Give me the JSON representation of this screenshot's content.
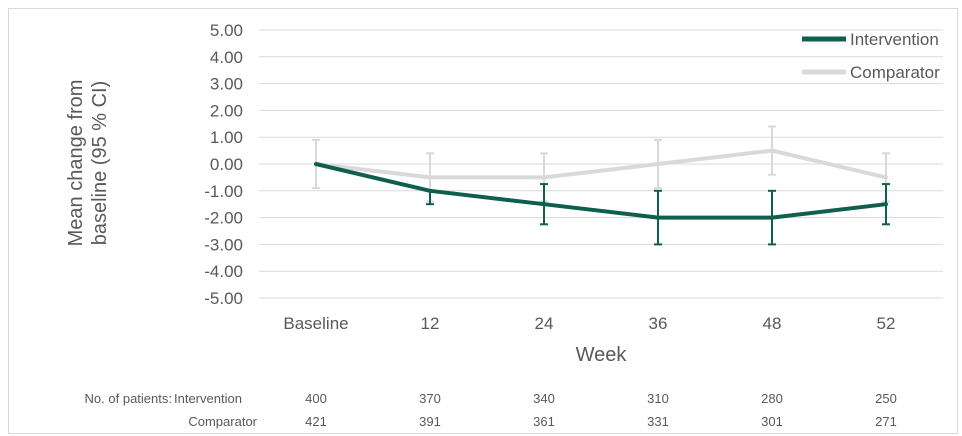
{
  "chart_data": {
    "type": "line",
    "title": "",
    "xlabel": "Week",
    "ylabel": "Mean change from baseline (95 % CI)",
    "ylabel_lines": [
      "Mean change from",
      "baseline (95 % CI)"
    ],
    "categories": [
      "Baseline",
      "12",
      "24",
      "36",
      "48",
      "52"
    ],
    "ylim": [
      -5,
      5
    ],
    "y_ticks": [
      "5.00",
      "4.00",
      "3.00",
      "2.00",
      "1.00",
      "0.00",
      "-1.00",
      "-2.00",
      "-3.00",
      "-4.00",
      "-5.00"
    ],
    "grid": "horizontal",
    "legend_position": "top-right",
    "series": [
      {
        "name": "Comparator",
        "color": "#d9d9d9",
        "values": [
          0,
          -0.5,
          -0.5,
          0,
          0.5,
          -0.5
        ],
        "ci_lower": [
          -0.9,
          -1.4,
          -1.4,
          -0.9,
          -0.4,
          -1.4
        ],
        "ci_upper": [
          0.9,
          0.4,
          0.4,
          0.9,
          1.4,
          0.4
        ]
      },
      {
        "name": "Intervention",
        "color": "#0e5f4c",
        "values": [
          0,
          -1,
          -1.5,
          -2,
          -2,
          -1.5
        ],
        "ci_lower": [
          0,
          -1.5,
          -2.25,
          -3,
          -3,
          -2.25
        ],
        "ci_upper": [
          0,
          -1,
          -0.75,
          -1,
          -1,
          -0.75
        ]
      }
    ],
    "legend": [
      {
        "name": "Intervention",
        "color": "#0e5f4c"
      },
      {
        "name": "Comparator",
        "color": "#d9d9d9"
      }
    ]
  },
  "patients_table": {
    "row_header": "No. of patients:",
    "rows": [
      {
        "label": "Intervention",
        "values": [
          "400",
          "370",
          "340",
          "310",
          "280",
          "250"
        ]
      },
      {
        "label": "Comparator",
        "values": [
          "421",
          "391",
          "361",
          "331",
          "301",
          "271"
        ]
      }
    ]
  }
}
